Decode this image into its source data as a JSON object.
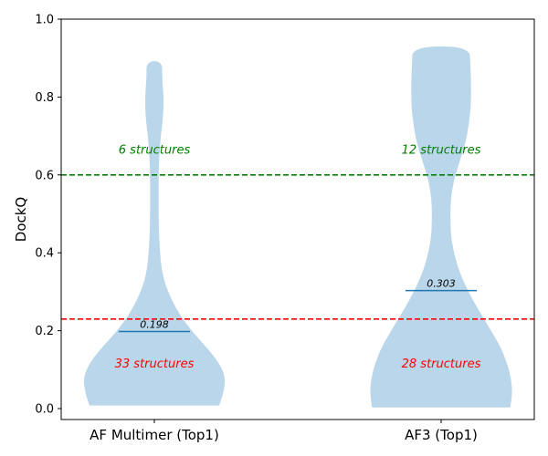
{
  "chart_data": {
    "type": "violin",
    "ylabel": "DockQ",
    "ylim": [
      0.0,
      1.0
    ],
    "yticks": [
      0.0,
      0.2,
      0.4,
      0.6,
      0.8,
      1.0
    ],
    "ytick_labels": [
      "0.0",
      "0.2",
      "0.4",
      "0.6",
      "0.8",
      "1.0"
    ],
    "categories": [
      "AF Multimer (Top1)",
      "AF3 (Top1)"
    ],
    "violins": [
      {
        "category": "AF Multimer (Top1)",
        "min": 0.008,
        "max": 0.892,
        "median": 0.198,
        "median_label": "0.198",
        "density_profile": [
          [
            0.008,
            0.91
          ],
          [
            0.04,
            0.97
          ],
          [
            0.08,
            1.0
          ],
          [
            0.12,
            0.9
          ],
          [
            0.16,
            0.72
          ],
          [
            0.2,
            0.52
          ],
          [
            0.24,
            0.36
          ],
          [
            0.28,
            0.24
          ],
          [
            0.32,
            0.15
          ],
          [
            0.36,
            0.1
          ],
          [
            0.4,
            0.08
          ],
          [
            0.45,
            0.065
          ],
          [
            0.5,
            0.06
          ],
          [
            0.55,
            0.06
          ],
          [
            0.6,
            0.06
          ],
          [
            0.65,
            0.07
          ],
          [
            0.7,
            0.09
          ],
          [
            0.75,
            0.125
          ],
          [
            0.8,
            0.13
          ],
          [
            0.85,
            0.11
          ],
          [
            0.892,
            0.11
          ]
        ]
      },
      {
        "category": "AF3 (Top1)",
        "min": 0.003,
        "max": 0.93,
        "median": 0.303,
        "median_label": "0.303",
        "density_profile": [
          [
            0.003,
            0.97
          ],
          [
            0.04,
            1.0
          ],
          [
            0.08,
            0.98
          ],
          [
            0.12,
            0.92
          ],
          [
            0.16,
            0.83
          ],
          [
            0.2,
            0.7
          ],
          [
            0.24,
            0.57
          ],
          [
            0.28,
            0.44
          ],
          [
            0.32,
            0.33
          ],
          [
            0.36,
            0.24
          ],
          [
            0.4,
            0.18
          ],
          [
            0.44,
            0.14
          ],
          [
            0.48,
            0.13
          ],
          [
            0.52,
            0.13
          ],
          [
            0.56,
            0.15
          ],
          [
            0.6,
            0.2
          ],
          [
            0.64,
            0.27
          ],
          [
            0.68,
            0.34
          ],
          [
            0.72,
            0.38
          ],
          [
            0.76,
            0.41
          ],
          [
            0.8,
            0.42
          ],
          [
            0.84,
            0.42
          ],
          [
            0.88,
            0.41
          ],
          [
            0.93,
            0.4
          ]
        ]
      }
    ],
    "violin_color": "#bad6ea",
    "median_color": "#1f77b4",
    "thresholds": [
      {
        "y": 0.6,
        "color": "#008000",
        "style": "dashed"
      },
      {
        "y": 0.23,
        "color": "#ff0000",
        "style": "dashed"
      }
    ],
    "annotations": [
      {
        "category_index": 0,
        "y": 0.655,
        "text": "6 structures",
        "color": "#008000"
      },
      {
        "category_index": 1,
        "y": 0.655,
        "text": "12 structures",
        "color": "#008000"
      },
      {
        "category_index": 0,
        "y": 0.105,
        "text": "33 structures",
        "color": "#ff0000"
      },
      {
        "category_index": 1,
        "y": 0.105,
        "text": "28 structures",
        "color": "#ff0000"
      }
    ]
  }
}
